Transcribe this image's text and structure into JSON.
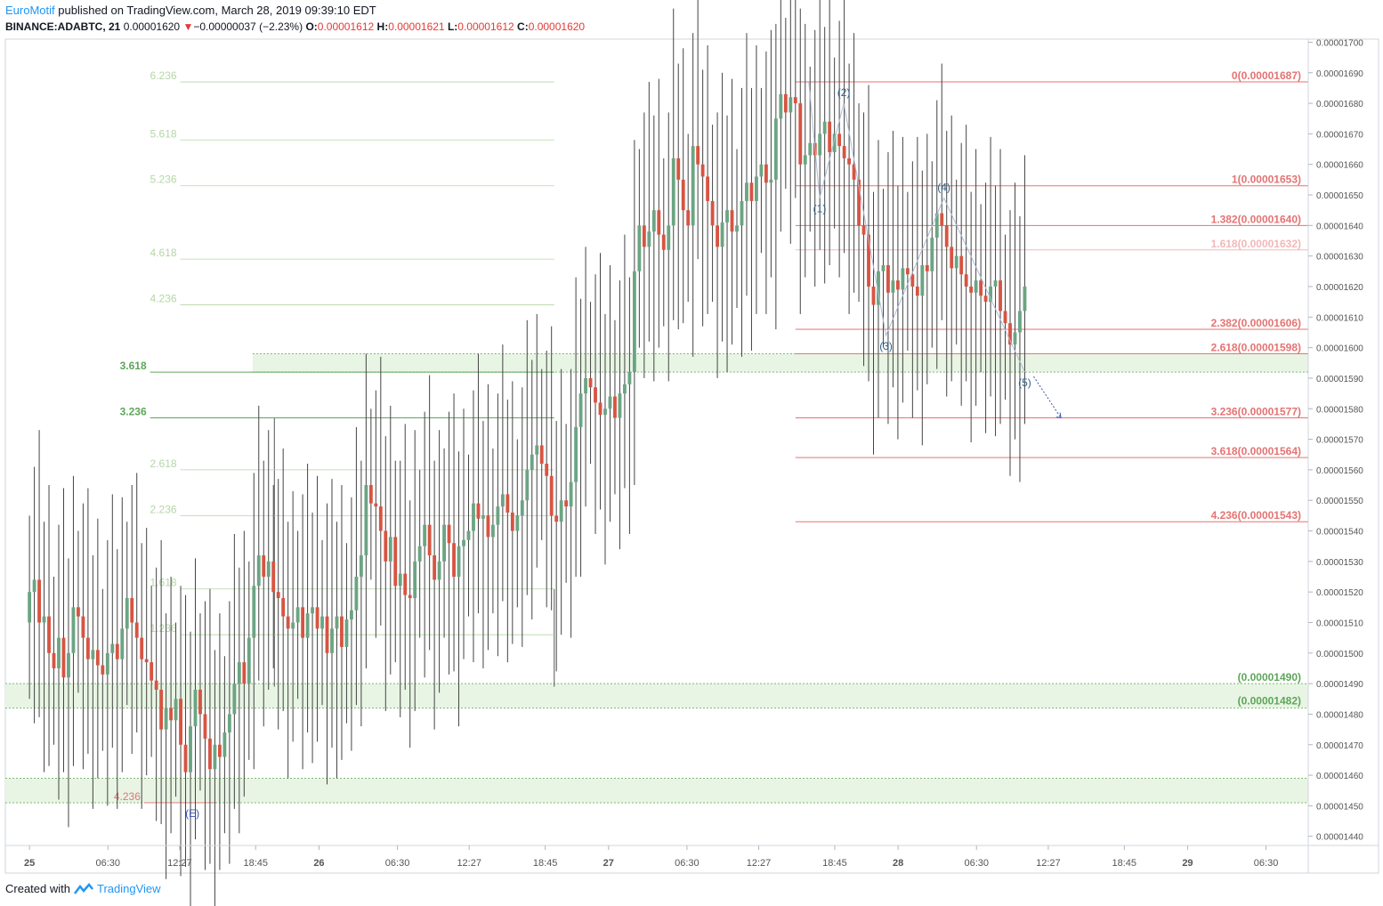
{
  "header": {
    "brand": "EuroMotif",
    "published": " published on TradingView.com, March 28, 2019 09:39:10 EDT",
    "symbol": "BINANCE:ADABTC, 21",
    "last": "0.00001620",
    "change_arrow": "▼",
    "change": "−0.00000037 (−2.23%)",
    "o_label": "O:",
    "o": "0.00001612",
    "h_label": "H:",
    "h": "0.00001621",
    "l_label": "L:",
    "l": "0.00001612",
    "c_label": "C:",
    "c": "0.00001620"
  },
  "footer": {
    "created_with": "Created with",
    "brand": "TradingView",
    "logo_icon": "tradingview-logo-icon"
  },
  "colors": {
    "up": "#6ba583",
    "down": "#d75442",
    "fib_left": "#b5d6a7",
    "fib_left_strong": "#5ea65a",
    "fib_right": "#e57373",
    "fib_right_faint": "#f2b8b8",
    "zone_fill": "#e8f5e4",
    "zone_border": "#7cb870",
    "wave": "#aebbd6",
    "wave_label": "#2c5f8a",
    "projection": "#3f51b5"
  },
  "chart_data": {
    "type": "candlestick",
    "symbol": "BINANCE:ADABTC",
    "timeframe": "21",
    "ylim": [
      1.437e-05,
      1.701e-05
    ],
    "y_ticks": [
      "0.00001700",
      "0.00001690",
      "0.00001680",
      "0.00001670",
      "0.00001660",
      "0.00001650",
      "0.00001640",
      "0.00001630",
      "0.00001620",
      "0.00001610",
      "0.00001600",
      "0.00001590",
      "0.00001580",
      "0.00001570",
      "0.00001560",
      "0.00001550",
      "0.00001540",
      "0.00001530",
      "0.00001520",
      "0.00001510",
      "0.00001500",
      "0.00001490",
      "0.00001480",
      "0.00001470",
      "0.00001460",
      "0.00001450",
      "0.00001440"
    ],
    "x_ticks": [
      {
        "label": "25",
        "t": 0,
        "bold": true
      },
      {
        "label": "06:30",
        "t": 6.5
      },
      {
        "label": "12:27",
        "t": 12.45
      },
      {
        "label": "18:45",
        "t": 18.75
      },
      {
        "label": "26",
        "t": 24,
        "bold": true
      },
      {
        "label": "06:30",
        "t": 30.5
      },
      {
        "label": "12:27",
        "t": 36.45
      },
      {
        "label": "18:45",
        "t": 42.75
      },
      {
        "label": "27",
        "t": 48,
        "bold": true
      },
      {
        "label": "06:30",
        "t": 54.5
      },
      {
        "label": "12:27",
        "t": 60.45
      },
      {
        "label": "18:45",
        "t": 66.75
      },
      {
        "label": "28",
        "t": 72,
        "bold": true
      },
      {
        "label": "06:30",
        "t": 78.5
      },
      {
        "label": "12:27",
        "t": 84.45
      },
      {
        "label": "18:45",
        "t": 90.75
      },
      {
        "label": "29",
        "t": 96,
        "bold": true
      },
      {
        "label": "06:30",
        "t": 102.5
      }
    ],
    "xlim": [
      -2,
      106
    ],
    "candles_close": [
      1.52e-05,
      1.524e-05,
      1.51e-05,
      1.512e-05,
      1.5e-05,
      1.495e-05,
      1.505e-05,
      1.492e-05,
      1.5e-05,
      1.515e-05,
      1.512e-05,
      1.505e-05,
      1.498e-05,
      1.501e-05,
      1.496e-05,
      1.493e-05,
      1.5e-05,
      1.503e-05,
      1.498e-05,
      1.508e-05,
      1.518e-05,
      1.51e-05,
      1.505e-05,
      1.498e-05,
      1.497e-05,
      1.491e-05,
      1.488e-05,
      1.475e-05,
      1.482e-05,
      1.478e-05,
      1.485e-05,
      1.47e-05,
      1.461e-05,
      1.476e-05,
      1.488e-05,
      1.48e-05,
      1.472e-05,
      1.462e-05,
      1.47e-05,
      1.466e-05,
      1.474e-05,
      1.48e-05,
      1.49e-05,
      1.497e-05,
      1.49e-05,
      1.505e-05,
      1.522e-05,
      1.532e-05,
      1.525e-05,
      1.53e-05,
      1.52e-05,
      1.518e-05,
      1.512e-05,
      1.508e-05,
      1.51e-05,
      1.515e-05,
      1.505e-05,
      1.513e-05,
      1.515e-05,
      1.508e-05,
      1.512e-05,
      1.5e-05,
      1.508e-05,
      1.512e-05,
      1.502e-05,
      1.511e-05,
      1.514e-05,
      1.525e-05,
      1.532e-05,
      1.555e-05,
      1.549e-05,
      1.548e-05,
      1.54e-05,
      1.53e-05,
      1.538e-05,
      1.522e-05,
      1.526e-05,
      1.519e-05,
      1.518e-05,
      1.53e-05,
      1.535e-05,
      1.542e-05,
      1.532e-05,
      1.524e-05,
      1.53e-05,
      1.542e-05,
      1.536e-05,
      1.525e-05,
      1.535e-05,
      1.537e-05,
      1.54e-05,
      1.549e-05,
      1.544e-05,
      1.545e-05,
      1.538e-05,
      1.542e-05,
      1.548e-05,
      1.552e-05,
      1.546e-05,
      1.54e-05,
      1.545e-05,
      1.55e-05,
      1.56e-05,
      1.565e-05,
      1.568e-05,
      1.562e-05,
      1.558e-05,
      1.545e-05,
      1.543e-05,
      1.55e-05,
      1.548e-05,
      1.556e-05,
      1.574e-05,
      1.585e-05,
      1.59e-05,
      1.587e-05,
      1.582e-05,
      1.578e-05,
      1.58e-05,
      1.584e-05,
      1.577e-05,
      1.585e-05,
      1.588e-05,
      1.592e-05,
      1.625e-05,
      1.64e-05,
      1.633e-05,
      1.638e-05,
      1.645e-05,
      1.637e-05,
      1.632e-05,
      1.64e-05,
      1.662e-05,
      1.655e-05,
      1.645e-05,
      1.64e-05,
      1.666e-05,
      1.66e-05,
      1.656e-05,
      1.648e-05,
      1.64e-05,
      1.633e-05,
      1.641e-05,
      1.645e-05,
      1.638e-05,
      1.64e-05,
      1.648e-05,
      1.654e-05,
      1.648e-05,
      1.656e-05,
      1.66e-05,
      1.654e-05,
      1.655e-05,
      1.675e-05,
      1.683e-05,
      1.677e-05,
      1.682e-05,
      1.68e-05,
      1.66e-05,
      1.663e-05,
      1.667e-05,
      1.663e-05,
      1.67e-05,
      1.674e-05,
      1.664e-05,
      1.67e-05,
      1.666e-05,
      1.662e-05,
      1.66e-05,
      1.655e-05,
      1.64e-05,
      1.637e-05,
      1.62e-05,
      1.614e-05,
      1.625e-05,
      1.627e-05,
      1.618e-05,
      1.622e-05,
      1.619e-05,
      1.626e-05,
      1.624e-05,
      1.62e-05,
      1.617e-05,
      1.627e-05,
      1.625e-05,
      1.636e-05,
      1.644e-05,
      1.64e-05,
      1.633e-05,
      1.626e-05,
      1.63e-05,
      1.624e-05,
      1.62e-05,
      1.618e-05,
      1.622e-05,
      1.617e-05,
      1.615e-05,
      1.62e-05,
      1.622e-05,
      1.612e-05,
      1.608e-05,
      1.601e-05,
      1.605e-05,
      1.612e-05,
      1.62e-05
    ],
    "fib_left": [
      {
        "label": "6.236",
        "value": 1.687e-05
      },
      {
        "label": "5.618",
        "value": 1.668e-05
      },
      {
        "label": "5.236",
        "value": 1.653e-05
      },
      {
        "label": "4.618",
        "value": 1.629e-05
      },
      {
        "label": "4.236",
        "value": 1.614e-05
      },
      {
        "label": "3.618",
        "value": 1.592e-05,
        "strong": true
      },
      {
        "label": "3.236",
        "value": 1.577e-05,
        "strong": true
      },
      {
        "label": "2.618",
        "value": 1.56e-05
      },
      {
        "label": "2.236",
        "value": 1.545e-05
      },
      {
        "label": "1.618",
        "value": 1.521e-05
      },
      {
        "label": "1.236",
        "value": 1.506e-05
      },
      {
        "label": "4.236",
        "value": 1.451e-05,
        "red": true
      }
    ],
    "fib_right": [
      {
        "label": "0(0.00001687)",
        "value": 1.687e-05
      },
      {
        "label": "1(0.00001653)",
        "value": 1.653e-05
      },
      {
        "label": "1.382(0.00001640)",
        "value": 1.64e-05
      },
      {
        "label": "1.618(0.00001632)",
        "value": 1.632e-05,
        "faint": true
      },
      {
        "label": "2.382(0.00001606)",
        "value": 1.606e-05
      },
      {
        "label": "2.618(0.00001598)",
        "value": 1.598e-05
      },
      {
        "label": "3.236(0.00001577)",
        "value": 1.577e-05
      },
      {
        "label": "3.618(0.00001564)",
        "value": 1.564e-05
      },
      {
        "label": "4.236(0.00001543)",
        "value": 1.543e-05
      }
    ],
    "zones": [
      {
        "from": 1.592e-05,
        "to": 1.598e-05
      },
      {
        "from": 1.482e-05,
        "to": 1.49e-05,
        "labels": [
          "(0.00001490)",
          "(0.00001482)"
        ]
      },
      {
        "from": 1.451e-05,
        "to": 1.459e-05
      }
    ],
    "wave_labels": [
      {
        "label": "(E)",
        "t": 13.5,
        "value": 1.451e-05
      },
      {
        "label": "(1)",
        "t": 65.5,
        "value": 1.649e-05
      },
      {
        "label": "(2)",
        "t": 67.5,
        "value": 1.68e-05
      },
      {
        "label": "(3)",
        "t": 71.0,
        "value": 1.604e-05
      },
      {
        "label": "(4)",
        "t": 75.8,
        "value": 1.649e-05
      },
      {
        "label": "(5)",
        "t": 82.5,
        "value": 1.592e-05
      }
    ],
    "projection_target": {
      "t": 85.5,
      "value": 1.577e-05
    }
  }
}
